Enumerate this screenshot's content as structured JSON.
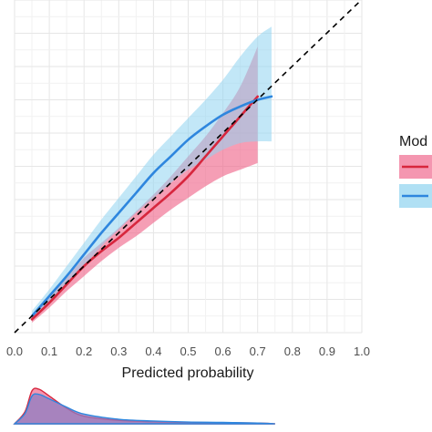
{
  "chart_data": {
    "type": "line",
    "title": "",
    "xlabel": "Predicted probability",
    "ylabel": "",
    "xlim": [
      0.0,
      1.0
    ],
    "ylim": [
      0.0,
      1.0
    ],
    "x_ticks": [
      "0.0",
      "0.1",
      "0.2",
      "0.3",
      "0.4",
      "0.5",
      "0.6",
      "0.7",
      "0.8",
      "0.9",
      "1.0"
    ],
    "grid": true,
    "legend": {
      "title": "Mod",
      "position": "right"
    },
    "reference_line": {
      "style": "dashed",
      "color": "#000000",
      "from": [
        0.0,
        0.0
      ],
      "to": [
        1.0,
        1.0
      ]
    },
    "series": [
      {
        "color": "#d7263d",
        "band_color": "#f06a8e",
        "x": [
          0.05,
          0.1,
          0.15,
          0.2,
          0.25,
          0.3,
          0.35,
          0.4,
          0.45,
          0.5,
          0.55,
          0.6,
          0.65,
          0.7
        ],
        "y": [
          0.04,
          0.09,
          0.145,
          0.2,
          0.245,
          0.285,
          0.33,
          0.375,
          0.42,
          0.47,
          0.53,
          0.59,
          0.65,
          0.71
        ],
        "lower": [
          0.03,
          0.075,
          0.125,
          0.17,
          0.215,
          0.255,
          0.29,
          0.33,
          0.37,
          0.405,
          0.44,
          0.47,
          0.49,
          0.51
        ],
        "upper": [
          0.055,
          0.105,
          0.165,
          0.225,
          0.27,
          0.315,
          0.365,
          0.415,
          0.47,
          0.53,
          0.59,
          0.66,
          0.74,
          0.86
        ]
      },
      {
        "color": "#2e86de",
        "band_color": "#8fd3f0",
        "x": [
          0.05,
          0.1,
          0.15,
          0.2,
          0.25,
          0.3,
          0.35,
          0.4,
          0.45,
          0.5,
          0.55,
          0.6,
          0.65,
          0.7,
          0.74
        ],
        "y": [
          0.05,
          0.11,
          0.17,
          0.235,
          0.3,
          0.36,
          0.42,
          0.48,
          0.53,
          0.58,
          0.62,
          0.655,
          0.68,
          0.7,
          0.71
        ],
        "lower": [
          0.035,
          0.085,
          0.14,
          0.2,
          0.26,
          0.31,
          0.36,
          0.405,
          0.45,
          0.49,
          0.52,
          0.55,
          0.57,
          0.575,
          0.575
        ],
        "upper": [
          0.065,
          0.13,
          0.2,
          0.27,
          0.34,
          0.405,
          0.47,
          0.535,
          0.59,
          0.645,
          0.7,
          0.76,
          0.83,
          0.89,
          0.92
        ]
      }
    ],
    "density": {
      "x": [
        0.0,
        0.03,
        0.05,
        0.07,
        0.1,
        0.15,
        0.2,
        0.3,
        0.4,
        0.5,
        0.6,
        0.7,
        0.75
      ],
      "series_a": [
        0.0,
        0.35,
        0.95,
        1.0,
        0.8,
        0.45,
        0.22,
        0.1,
        0.06,
        0.04,
        0.03,
        0.02,
        0.0
      ],
      "series_b": [
        0.0,
        0.3,
        0.8,
        0.85,
        0.72,
        0.48,
        0.28,
        0.13,
        0.08,
        0.05,
        0.04,
        0.02,
        0.0
      ]
    }
  }
}
